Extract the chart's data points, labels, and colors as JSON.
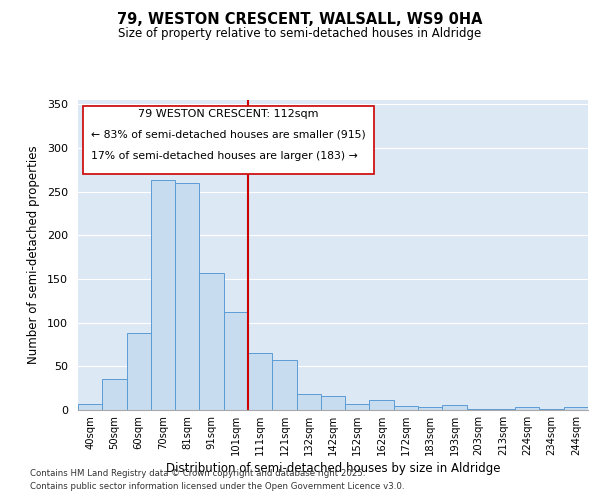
{
  "title": "79, WESTON CRESCENT, WALSALL, WS9 0HA",
  "subtitle": "Size of property relative to semi-detached houses in Aldridge",
  "xlabel": "Distribution of semi-detached houses by size in Aldridge",
  "ylabel": "Number of semi-detached properties",
  "categories": [
    "40sqm",
    "50sqm",
    "60sqm",
    "70sqm",
    "81sqm",
    "91sqm",
    "101sqm",
    "111sqm",
    "121sqm",
    "132sqm",
    "142sqm",
    "152sqm",
    "162sqm",
    "172sqm",
    "183sqm",
    "193sqm",
    "203sqm",
    "213sqm",
    "224sqm",
    "234sqm",
    "244sqm"
  ],
  "values": [
    7,
    35,
    88,
    263,
    260,
    157,
    112,
    65,
    57,
    18,
    16,
    7,
    12,
    5,
    4,
    6,
    1,
    1,
    3,
    1,
    4
  ],
  "bar_color": "#c8dcf0",
  "bar_edge_color": "#5b9bd5",
  "vline_index": 7,
  "vline_color": "#cc0000",
  "property_label": "79 WESTON CRESCENT: 112sqm",
  "smaller_label": "← 83% of semi-detached houses are smaller (915)",
  "larger_label": "17% of semi-detached houses are larger (183) →",
  "annotation_box_color": "#cc0000",
  "ylim": [
    0,
    355
  ],
  "yticks": [
    0,
    50,
    100,
    150,
    200,
    250,
    300,
    350
  ],
  "bg_color": "#dde8f5",
  "footer_line1": "Contains HM Land Registry data © Crown copyright and database right 2025.",
  "footer_line2": "Contains public sector information licensed under the Open Government Licence v3.0."
}
